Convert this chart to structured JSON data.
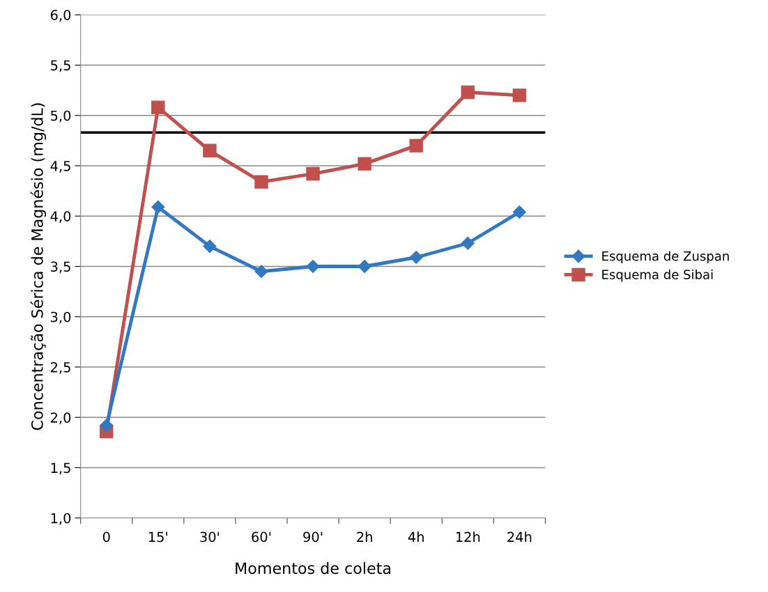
{
  "chart_data": {
    "type": "line",
    "xlabel": "Momentos de coleta",
    "ylabel": "Concentração Sérica de Magnésio (mg/dL)",
    "categories": [
      "0",
      "15'",
      "30'",
      "60'",
      "90'",
      "2h",
      "4h",
      "12h",
      "24h"
    ],
    "series": [
      {
        "name": "Esquema de Zuspan",
        "color": "#3178c0",
        "marker": "diamond",
        "values": [
          1.92,
          4.09,
          3.7,
          3.45,
          3.5,
          3.5,
          3.59,
          3.73,
          4.04
        ]
      },
      {
        "name": "Esquema de Sibai",
        "color": "#c0504d",
        "marker": "square",
        "values": [
          1.86,
          5.08,
          4.65,
          4.34,
          4.42,
          4.52,
          4.7,
          5.23,
          5.2
        ]
      }
    ],
    "ylim": [
      1.0,
      6.0
    ],
    "yticks": [
      {
        "value": 1.0,
        "label": "1,0"
      },
      {
        "value": 1.5,
        "label": "1,5"
      },
      {
        "value": 2.0,
        "label": "2,0"
      },
      {
        "value": 2.5,
        "label": "2,5"
      },
      {
        "value": 3.0,
        "label": "3,0"
      },
      {
        "value": 3.5,
        "label": "3,5"
      },
      {
        "value": 4.0,
        "label": "4,0"
      },
      {
        "value": 4.5,
        "label": "4,5"
      },
      {
        "value": 5.0,
        "label": "5,0"
      },
      {
        "value": 5.5,
        "label": "5,5"
      },
      {
        "value": 6.0,
        "label": "6,0"
      }
    ],
    "ref_lines": [
      {
        "axis": "y",
        "value": 4.83,
        "color": "#000000"
      }
    ],
    "grid": "y",
    "legend": "right",
    "line_style": "solid"
  }
}
